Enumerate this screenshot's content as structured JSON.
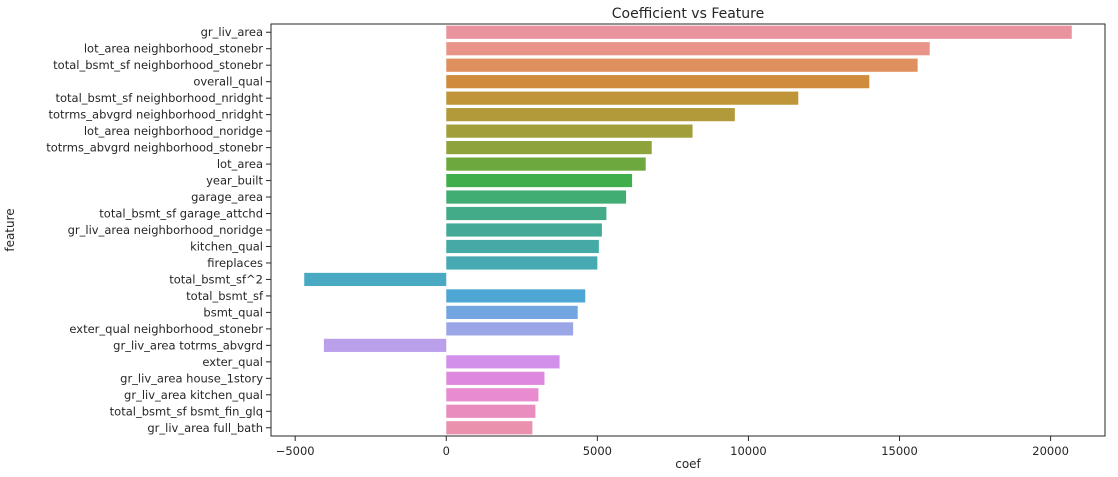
{
  "chart_data": {
    "type": "bar",
    "orientation": "horizontal",
    "title": "Coefficient vs Feature",
    "xlabel": "coef",
    "ylabel": "feature",
    "xlim": [
      -5800,
      21800
    ],
    "xticks": [
      -5000,
      0,
      5000,
      10000,
      15000,
      20000
    ],
    "grid": false,
    "legend": "none",
    "categories": [
      "gr_liv_area",
      "lot_area neighborhood_stonebr",
      "total_bsmt_sf neighborhood_stonebr",
      "overall_qual",
      "total_bsmt_sf neighborhood_nridght",
      "totrms_abvgrd neighborhood_nridght",
      "lot_area neighborhood_noridge",
      "totrms_abvgrd neighborhood_stonebr",
      "lot_area",
      "year_built",
      "garage_area",
      "total_bsmt_sf garage_attchd",
      "gr_liv_area neighborhood_noridge",
      "kitchen_qual",
      "fireplaces",
      "total_bsmt_sf^2",
      "total_bsmt_sf",
      "bsmt_qual",
      "exter_qual neighborhood_stonebr",
      "gr_liv_area totrms_abvgrd",
      "exter_qual",
      "gr_liv_area house_1story",
      "gr_liv_area kitchen_qual",
      "total_bsmt_sf bsmt_fin_glq",
      "gr_liv_area full_bath"
    ],
    "values": [
      20700,
      16000,
      15600,
      14000,
      11650,
      9550,
      8150,
      6800,
      6600,
      6150,
      5950,
      5300,
      5150,
      5050,
      5000,
      -4700,
      4600,
      4350,
      4200,
      -4050,
      3750,
      3250,
      3050,
      2950,
      2850
    ],
    "colors": [
      "#e8939e",
      "#e89488",
      "#e08f5f",
      "#d08c3d",
      "#c0953a",
      "#b29a3a",
      "#a29e3a",
      "#8fa33c",
      "#6ca83e",
      "#3fae4b",
      "#41ad72",
      "#43ab88",
      "#44aa98",
      "#45aaa5",
      "#47a9b1",
      "#49a8c2",
      "#4ea6d4",
      "#73a5e1",
      "#9ba6e7",
      "#baa0eb",
      "#d290ea",
      "#df88e0",
      "#e88bd0",
      "#e98cbe",
      "#e991ad"
    ],
    "tick_format": "plain"
  }
}
